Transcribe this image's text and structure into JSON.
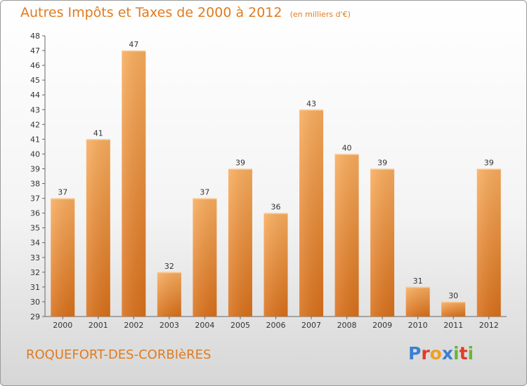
{
  "header": {
    "title": "Autres Impôts et Taxes de 2000 à 2012",
    "unit": "(en milliers d'€)"
  },
  "footer": {
    "commune": "ROQUEFORT-DES-CORBIèRES",
    "logo_letters": [
      "P",
      "r",
      "o",
      "x",
      "i",
      "t",
      "i"
    ],
    "logo_colors": [
      "#3b7fd4",
      "#e03b2a",
      "#f0a020",
      "#3b7fd4",
      "#6cb33f",
      "#e03b2a",
      "#6cb33f"
    ]
  },
  "chart_data": {
    "type": "bar",
    "title": "Autres Impôts et Taxes de 2000 à 2012",
    "subtitle": "(en milliers d'€)",
    "categories": [
      "2000",
      "2001",
      "2002",
      "2003",
      "2004",
      "2005",
      "2006",
      "2007",
      "2008",
      "2009",
      "2010",
      "2011",
      "2012"
    ],
    "values": [
      37,
      41,
      47,
      32,
      37,
      39,
      36,
      43,
      40,
      39,
      31,
      30,
      39
    ],
    "ylim": [
      29,
      48
    ],
    "yticks": [
      29,
      30,
      31,
      32,
      33,
      34,
      35,
      36,
      37,
      38,
      39,
      40,
      41,
      42,
      43,
      44,
      45,
      46,
      47,
      48
    ],
    "grid": false,
    "bar_color_light": "#f7a95a",
    "bar_color_dark": "#e07a1e"
  }
}
